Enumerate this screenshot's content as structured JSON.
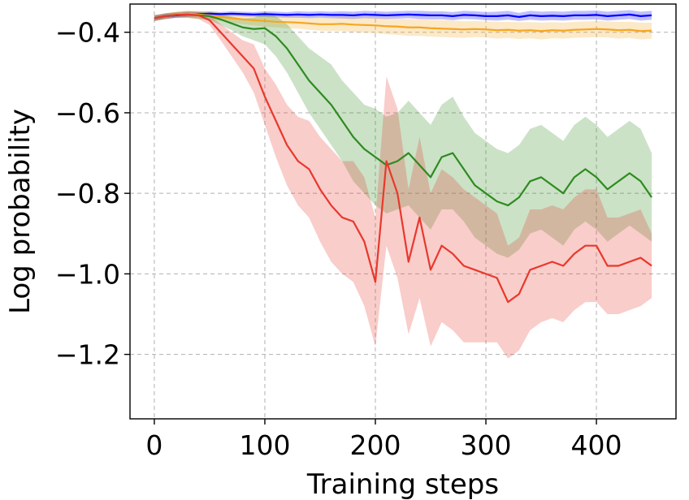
{
  "chart_data": {
    "type": "line",
    "title": "",
    "xlabel": "Training steps",
    "ylabel": "Log probability",
    "xlim": [
      -22,
      472
    ],
    "ylim": [
      -1.36,
      -0.33
    ],
    "xticks": [
      0,
      100,
      200,
      300,
      400
    ],
    "xtick_labels": [
      "0",
      "100",
      "200",
      "300",
      "400"
    ],
    "yticks": [
      -0.4,
      -0.6,
      -0.8,
      -1.0,
      -1.2
    ],
    "ytick_labels": [
      "−0.4",
      "−0.6",
      "−0.8",
      "−1.0",
      "−1.2"
    ],
    "grid": true,
    "x": [
      0,
      10,
      20,
      30,
      40,
      50,
      60,
      70,
      80,
      90,
      100,
      110,
      120,
      130,
      140,
      150,
      160,
      170,
      180,
      190,
      200,
      210,
      220,
      230,
      240,
      250,
      260,
      270,
      280,
      290,
      300,
      310,
      320,
      330,
      340,
      350,
      360,
      370,
      380,
      390,
      400,
      410,
      420,
      430,
      440,
      450
    ],
    "series": [
      {
        "color": "#0000ff",
        "values": [
          -0.365,
          -0.36,
          -0.358,
          -0.356,
          -0.355,
          -0.354,
          -0.355,
          -0.354,
          -0.355,
          -0.356,
          -0.355,
          -0.356,
          -0.357,
          -0.356,
          -0.357,
          -0.356,
          -0.357,
          -0.357,
          -0.358,
          -0.356,
          -0.357,
          -0.358,
          -0.357,
          -0.356,
          -0.357,
          -0.358,
          -0.358,
          -0.36,
          -0.357,
          -0.358,
          -0.36,
          -0.36,
          -0.358,
          -0.362,
          -0.358,
          -0.36,
          -0.359,
          -0.36,
          -0.358,
          -0.358,
          -0.357,
          -0.36,
          -0.358,
          -0.356,
          -0.36,
          -0.358
        ],
        "lower": [
          -0.372,
          -0.367,
          -0.364,
          -0.362,
          -0.36,
          -0.36,
          -0.36,
          -0.36,
          -0.361,
          -0.362,
          -0.362,
          -0.363,
          -0.364,
          -0.364,
          -0.365,
          -0.364,
          -0.365,
          -0.366,
          -0.367,
          -0.365,
          -0.366,
          -0.367,
          -0.366,
          -0.365,
          -0.367,
          -0.368,
          -0.368,
          -0.37,
          -0.367,
          -0.368,
          -0.37,
          -0.371,
          -0.369,
          -0.372,
          -0.369,
          -0.371,
          -0.37,
          -0.371,
          -0.369,
          -0.369,
          -0.368,
          -0.371,
          -0.369,
          -0.367,
          -0.371,
          -0.369
        ],
        "upper": [
          -0.358,
          -0.354,
          -0.352,
          -0.35,
          -0.35,
          -0.348,
          -0.35,
          -0.348,
          -0.349,
          -0.35,
          -0.348,
          -0.349,
          -0.35,
          -0.348,
          -0.349,
          -0.348,
          -0.349,
          -0.348,
          -0.349,
          -0.347,
          -0.348,
          -0.349,
          -0.348,
          -0.347,
          -0.347,
          -0.348,
          -0.348,
          -0.35,
          -0.347,
          -0.348,
          -0.35,
          -0.349,
          -0.347,
          -0.352,
          -0.347,
          -0.349,
          -0.348,
          -0.349,
          -0.347,
          -0.347,
          -0.346,
          -0.349,
          -0.347,
          -0.345,
          -0.349,
          -0.347
        ]
      },
      {
        "color": "#f5a623",
        "values": [
          -0.365,
          -0.36,
          -0.356,
          -0.354,
          -0.356,
          -0.358,
          -0.362,
          -0.365,
          -0.368,
          -0.37,
          -0.372,
          -0.374,
          -0.375,
          -0.376,
          -0.378,
          -0.38,
          -0.38,
          -0.379,
          -0.381,
          -0.382,
          -0.383,
          -0.385,
          -0.386,
          -0.388,
          -0.388,
          -0.39,
          -0.391,
          -0.392,
          -0.393,
          -0.392,
          -0.393,
          -0.395,
          -0.394,
          -0.396,
          -0.395,
          -0.397,
          -0.395,
          -0.396,
          -0.394,
          -0.393,
          -0.392,
          -0.393,
          -0.395,
          -0.394,
          -0.397,
          -0.396
        ],
        "lower": [
          -0.372,
          -0.367,
          -0.363,
          -0.362,
          -0.365,
          -0.368,
          -0.372,
          -0.376,
          -0.38,
          -0.383,
          -0.386,
          -0.388,
          -0.39,
          -0.391,
          -0.394,
          -0.396,
          -0.397,
          -0.397,
          -0.4,
          -0.401,
          -0.402,
          -0.405,
          -0.406,
          -0.409,
          -0.409,
          -0.411,
          -0.412,
          -0.413,
          -0.414,
          -0.412,
          -0.413,
          -0.416,
          -0.414,
          -0.417,
          -0.415,
          -0.418,
          -0.415,
          -0.416,
          -0.414,
          -0.413,
          -0.412,
          -0.413,
          -0.416,
          -0.414,
          -0.418,
          -0.416
        ],
        "upper": [
          -0.358,
          -0.353,
          -0.349,
          -0.346,
          -0.347,
          -0.348,
          -0.352,
          -0.354,
          -0.356,
          -0.357,
          -0.358,
          -0.36,
          -0.36,
          -0.361,
          -0.362,
          -0.364,
          -0.363,
          -0.361,
          -0.362,
          -0.363,
          -0.364,
          -0.365,
          -0.366,
          -0.367,
          -0.367,
          -0.369,
          -0.37,
          -0.371,
          -0.372,
          -0.372,
          -0.373,
          -0.374,
          -0.374,
          -0.375,
          -0.375,
          -0.376,
          -0.375,
          -0.376,
          -0.374,
          -0.373,
          -0.372,
          -0.373,
          -0.374,
          -0.374,
          -0.376,
          -0.376
        ]
      },
      {
        "color": "#2e8b1f",
        "values": [
          -0.365,
          -0.36,
          -0.357,
          -0.356,
          -0.358,
          -0.36,
          -0.368,
          -0.378,
          -0.388,
          -0.392,
          -0.39,
          -0.41,
          -0.44,
          -0.48,
          -0.52,
          -0.55,
          -0.58,
          -0.62,
          -0.66,
          -0.69,
          -0.71,
          -0.73,
          -0.72,
          -0.7,
          -0.73,
          -0.76,
          -0.71,
          -0.7,
          -0.74,
          -0.78,
          -0.8,
          -0.82,
          -0.83,
          -0.81,
          -0.77,
          -0.76,
          -0.78,
          -0.8,
          -0.76,
          -0.74,
          -0.76,
          -0.79,
          -0.77,
          -0.75,
          -0.77,
          -0.81
        ],
        "lower": [
          -0.372,
          -0.367,
          -0.364,
          -0.364,
          -0.367,
          -0.37,
          -0.382,
          -0.395,
          -0.41,
          -0.42,
          -0.43,
          -0.46,
          -0.5,
          -0.55,
          -0.6,
          -0.64,
          -0.68,
          -0.72,
          -0.77,
          -0.8,
          -0.83,
          -0.85,
          -0.84,
          -0.83,
          -0.86,
          -0.89,
          -0.84,
          -0.84,
          -0.87,
          -0.91,
          -0.93,
          -0.95,
          -0.96,
          -0.94,
          -0.9,
          -0.89,
          -0.91,
          -0.93,
          -0.89,
          -0.87,
          -0.89,
          -0.92,
          -0.9,
          -0.88,
          -0.9,
          -0.92
        ],
        "upper": [
          -0.358,
          -0.353,
          -0.35,
          -0.348,
          -0.349,
          -0.35,
          -0.354,
          -0.361,
          -0.366,
          -0.364,
          -0.35,
          -0.36,
          -0.38,
          -0.41,
          -0.44,
          -0.46,
          -0.48,
          -0.52,
          -0.55,
          -0.58,
          -0.59,
          -0.61,
          -0.6,
          -0.57,
          -0.6,
          -0.63,
          -0.58,
          -0.56,
          -0.61,
          -0.65,
          -0.67,
          -0.69,
          -0.7,
          -0.68,
          -0.64,
          -0.63,
          -0.65,
          -0.67,
          -0.63,
          -0.61,
          -0.63,
          -0.66,
          -0.64,
          -0.62,
          -0.64,
          -0.7
        ]
      },
      {
        "color": "#e8382d",
        "values": [
          -0.365,
          -0.36,
          -0.357,
          -0.356,
          -0.358,
          -0.37,
          -0.4,
          -0.43,
          -0.46,
          -0.49,
          -0.56,
          -0.62,
          -0.68,
          -0.72,
          -0.74,
          -0.79,
          -0.83,
          -0.86,
          -0.87,
          -0.92,
          -1.02,
          -0.72,
          -0.8,
          -0.97,
          -0.86,
          -0.99,
          -0.93,
          -0.95,
          -0.98,
          -0.99,
          -1.0,
          -1.01,
          -1.07,
          -1.05,
          -0.99,
          -0.98,
          -0.97,
          -0.98,
          -0.95,
          -0.93,
          -0.93,
          -0.98,
          -0.98,
          -0.97,
          -0.96,
          -0.98
        ],
        "lower": [
          -0.372,
          -0.367,
          -0.364,
          -0.364,
          -0.367,
          -0.382,
          -0.42,
          -0.46,
          -0.5,
          -0.55,
          -0.63,
          -0.71,
          -0.78,
          -0.83,
          -0.86,
          -0.92,
          -0.97,
          -1.0,
          -1.02,
          -1.08,
          -1.18,
          -0.93,
          -1.01,
          -1.15,
          -1.06,
          -1.18,
          -1.12,
          -1.14,
          -1.17,
          -1.17,
          -1.17,
          -1.17,
          -1.21,
          -1.19,
          -1.14,
          -1.12,
          -1.11,
          -1.12,
          -1.09,
          -1.07,
          -1.07,
          -1.1,
          -1.1,
          -1.09,
          -1.08,
          -1.06
        ],
        "upper": [
          -0.358,
          -0.353,
          -0.35,
          -0.348,
          -0.349,
          -0.358,
          -0.38,
          -0.4,
          -0.42,
          -0.43,
          -0.49,
          -0.53,
          -0.58,
          -0.61,
          -0.62,
          -0.66,
          -0.69,
          -0.72,
          -0.72,
          -0.76,
          -0.86,
          -0.51,
          -0.59,
          -0.79,
          -0.66,
          -0.8,
          -0.74,
          -0.76,
          -0.79,
          -0.81,
          -0.83,
          -0.85,
          -0.93,
          -0.91,
          -0.84,
          -0.84,
          -0.83,
          -0.84,
          -0.81,
          -0.79,
          -0.79,
          -0.86,
          -0.86,
          -0.85,
          -0.84,
          -0.9
        ]
      }
    ]
  }
}
